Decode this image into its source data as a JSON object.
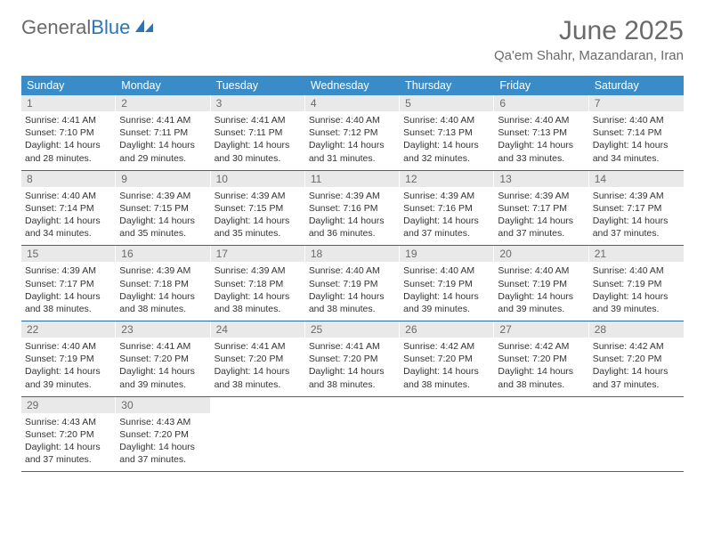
{
  "brand": {
    "part1": "General",
    "part2": "Blue"
  },
  "title": "June 2025",
  "location": "Qa'em Shahr, Mazandaran, Iran",
  "colors": {
    "header_bg": "#3a8cc9",
    "header_text": "#ffffff",
    "daynum_bg": "#e9e9e9",
    "daynum_text": "#6a6a6a",
    "week_border": "#2d6aa0",
    "body_text": "#333333",
    "title_text": "#6a6a6a"
  },
  "weekdays": [
    "Sunday",
    "Monday",
    "Tuesday",
    "Wednesday",
    "Thursday",
    "Friday",
    "Saturday"
  ],
  "days": [
    {
      "n": "1",
      "sr": "4:41 AM",
      "ss": "7:10 PM",
      "dh": "14",
      "dm": "28"
    },
    {
      "n": "2",
      "sr": "4:41 AM",
      "ss": "7:11 PM",
      "dh": "14",
      "dm": "29"
    },
    {
      "n": "3",
      "sr": "4:41 AM",
      "ss": "7:11 PM",
      "dh": "14",
      "dm": "30"
    },
    {
      "n": "4",
      "sr": "4:40 AM",
      "ss": "7:12 PM",
      "dh": "14",
      "dm": "31"
    },
    {
      "n": "5",
      "sr": "4:40 AM",
      "ss": "7:13 PM",
      "dh": "14",
      "dm": "32"
    },
    {
      "n": "6",
      "sr": "4:40 AM",
      "ss": "7:13 PM",
      "dh": "14",
      "dm": "33"
    },
    {
      "n": "7",
      "sr": "4:40 AM",
      "ss": "7:14 PM",
      "dh": "14",
      "dm": "34"
    },
    {
      "n": "8",
      "sr": "4:40 AM",
      "ss": "7:14 PM",
      "dh": "14",
      "dm": "34"
    },
    {
      "n": "9",
      "sr": "4:39 AM",
      "ss": "7:15 PM",
      "dh": "14",
      "dm": "35"
    },
    {
      "n": "10",
      "sr": "4:39 AM",
      "ss": "7:15 PM",
      "dh": "14",
      "dm": "35"
    },
    {
      "n": "11",
      "sr": "4:39 AM",
      "ss": "7:16 PM",
      "dh": "14",
      "dm": "36"
    },
    {
      "n": "12",
      "sr": "4:39 AM",
      "ss": "7:16 PM",
      "dh": "14",
      "dm": "37"
    },
    {
      "n": "13",
      "sr": "4:39 AM",
      "ss": "7:17 PM",
      "dh": "14",
      "dm": "37"
    },
    {
      "n": "14",
      "sr": "4:39 AM",
      "ss": "7:17 PM",
      "dh": "14",
      "dm": "37"
    },
    {
      "n": "15",
      "sr": "4:39 AM",
      "ss": "7:17 PM",
      "dh": "14",
      "dm": "38"
    },
    {
      "n": "16",
      "sr": "4:39 AM",
      "ss": "7:18 PM",
      "dh": "14",
      "dm": "38"
    },
    {
      "n": "17",
      "sr": "4:39 AM",
      "ss": "7:18 PM",
      "dh": "14",
      "dm": "38"
    },
    {
      "n": "18",
      "sr": "4:40 AM",
      "ss": "7:19 PM",
      "dh": "14",
      "dm": "38"
    },
    {
      "n": "19",
      "sr": "4:40 AM",
      "ss": "7:19 PM",
      "dh": "14",
      "dm": "39"
    },
    {
      "n": "20",
      "sr": "4:40 AM",
      "ss": "7:19 PM",
      "dh": "14",
      "dm": "39"
    },
    {
      "n": "21",
      "sr": "4:40 AM",
      "ss": "7:19 PM",
      "dh": "14",
      "dm": "39"
    },
    {
      "n": "22",
      "sr": "4:40 AM",
      "ss": "7:19 PM",
      "dh": "14",
      "dm": "39"
    },
    {
      "n": "23",
      "sr": "4:41 AM",
      "ss": "7:20 PM",
      "dh": "14",
      "dm": "39"
    },
    {
      "n": "24",
      "sr": "4:41 AM",
      "ss": "7:20 PM",
      "dh": "14",
      "dm": "38"
    },
    {
      "n": "25",
      "sr": "4:41 AM",
      "ss": "7:20 PM",
      "dh": "14",
      "dm": "38"
    },
    {
      "n": "26",
      "sr": "4:42 AM",
      "ss": "7:20 PM",
      "dh": "14",
      "dm": "38"
    },
    {
      "n": "27",
      "sr": "4:42 AM",
      "ss": "7:20 PM",
      "dh": "14",
      "dm": "38"
    },
    {
      "n": "28",
      "sr": "4:42 AM",
      "ss": "7:20 PM",
      "dh": "14",
      "dm": "37"
    },
    {
      "n": "29",
      "sr": "4:43 AM",
      "ss": "7:20 PM",
      "dh": "14",
      "dm": "37"
    },
    {
      "n": "30",
      "sr": "4:43 AM",
      "ss": "7:20 PM",
      "dh": "14",
      "dm": "37"
    }
  ],
  "labels": {
    "sunrise": "Sunrise:",
    "sunset": "Sunset:",
    "daylight_prefix": "Daylight:",
    "hours_word": "hours",
    "and_word": "and",
    "minutes_word": "minutes."
  },
  "layout": {
    "columns": 7,
    "start_weekday_index": 0,
    "total_cells": 35
  }
}
